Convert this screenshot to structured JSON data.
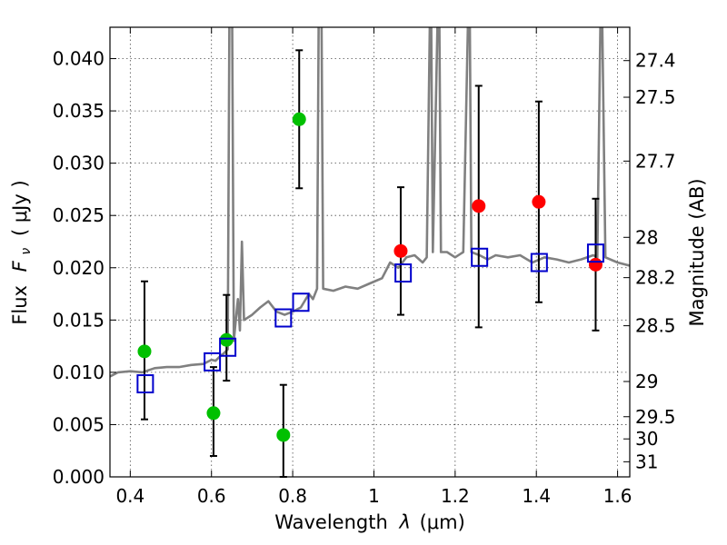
{
  "chart_data": {
    "type": "scatter",
    "xlabel_text": "Wavelength",
    "xlabel_symbol": "λ",
    "xlabel_unit": "(μm)",
    "ylabel_text": "Flux",
    "ylabel_symbol": "F",
    "ylabel_subscript": "ν",
    "ylabel_unit": "( μJy )",
    "y2label": "Magnitude (AB)",
    "xlim": [
      0.35,
      1.63
    ],
    "ylim": [
      0.0,
      0.043
    ],
    "grid": true,
    "x_ticks": [
      {
        "value": 0.4,
        "label": "0.4"
      },
      {
        "value": 0.6,
        "label": "0.6"
      },
      {
        "value": 0.8,
        "label": "0.8"
      },
      {
        "value": 1.0,
        "label": "1"
      },
      {
        "value": 1.2,
        "label": "1.2"
      },
      {
        "value": 1.4,
        "label": "1.4"
      },
      {
        "value": 1.6,
        "label": "1.6"
      }
    ],
    "y_ticks": [
      {
        "value": 0.0,
        "label": "0.000"
      },
      {
        "value": 0.005,
        "label": "0.005"
      },
      {
        "value": 0.01,
        "label": "0.010"
      },
      {
        "value": 0.015,
        "label": "0.015"
      },
      {
        "value": 0.02,
        "label": "0.020"
      },
      {
        "value": 0.025,
        "label": "0.025"
      },
      {
        "value": 0.03,
        "label": "0.030"
      },
      {
        "value": 0.035,
        "label": "0.035"
      },
      {
        "value": 0.04,
        "label": "0.040"
      }
    ],
    "y2_ticks": [
      {
        "label": "27.4",
        "mag": 27.4
      },
      {
        "label": "27.5",
        "mag": 27.5
      },
      {
        "label": "27.7",
        "mag": 27.7
      },
      {
        "label": "28",
        "mag": 28.0
      },
      {
        "label": "28.2",
        "mag": 28.2
      },
      {
        "label": "28.5",
        "mag": 28.5
      },
      {
        "label": "29",
        "mag": 29.0
      },
      {
        "label": "29.5",
        "mag": 29.5
      },
      {
        "label": "30",
        "mag": 30.0
      },
      {
        "label": "31",
        "mag": 31.0
      }
    ],
    "colors": {
      "template": "#808080",
      "green_points": "#00c000",
      "red_points": "#ff0000",
      "model_boxes": "#0000cc",
      "errorbars": "#000000"
    },
    "template_spectrum": {
      "name": "",
      "points": [
        [
          0.35,
          0.0096
        ],
        [
          0.37,
          0.01
        ],
        [
          0.4,
          0.0101
        ],
        [
          0.43,
          0.01
        ],
        [
          0.46,
          0.0104
        ],
        [
          0.49,
          0.0105
        ],
        [
          0.52,
          0.0105
        ],
        [
          0.55,
          0.0107
        ],
        [
          0.58,
          0.0108
        ],
        [
          0.6,
          0.0112
        ],
        [
          0.61,
          0.0111
        ],
        [
          0.62,
          0.0115
        ],
        [
          0.63,
          0.0118
        ],
        [
          0.64,
          0.0122
        ],
        [
          0.645,
          0.05
        ],
        [
          0.65,
          0.05
        ],
        [
          0.655,
          0.013
        ],
        [
          0.66,
          0.015
        ],
        [
          0.665,
          0.017
        ],
        [
          0.67,
          0.014
        ],
        [
          0.675,
          0.0225
        ],
        [
          0.68,
          0.015
        ],
        [
          0.7,
          0.0155
        ],
        [
          0.72,
          0.0162
        ],
        [
          0.74,
          0.0168
        ],
        [
          0.76,
          0.0158
        ],
        [
          0.78,
          0.0155
        ],
        [
          0.8,
          0.0158
        ],
        [
          0.82,
          0.0162
        ],
        [
          0.84,
          0.0175
        ],
        [
          0.85,
          0.017
        ],
        [
          0.86,
          0.018
        ],
        [
          0.865,
          0.05
        ],
        [
          0.87,
          0.05
        ],
        [
          0.875,
          0.018
        ],
        [
          0.9,
          0.0178
        ],
        [
          0.93,
          0.0182
        ],
        [
          0.96,
          0.018
        ],
        [
          0.99,
          0.0185
        ],
        [
          1.02,
          0.019
        ],
        [
          1.04,
          0.0205
        ],
        [
          1.06,
          0.02
        ],
        [
          1.08,
          0.021
        ],
        [
          1.1,
          0.0212
        ],
        [
          1.12,
          0.0205
        ],
        [
          1.13,
          0.021
        ],
        [
          1.14,
          0.05
        ],
        [
          1.145,
          0.0215
        ],
        [
          1.16,
          0.05
        ],
        [
          1.165,
          0.0215
        ],
        [
          1.18,
          0.0215
        ],
        [
          1.2,
          0.021
        ],
        [
          1.22,
          0.0215
        ],
        [
          1.235,
          0.05
        ],
        [
          1.24,
          0.0215
        ],
        [
          1.26,
          0.0212
        ],
        [
          1.28,
          0.0208
        ],
        [
          1.3,
          0.0212
        ],
        [
          1.33,
          0.021
        ],
        [
          1.36,
          0.0212
        ],
        [
          1.39,
          0.0205
        ],
        [
          1.42,
          0.021
        ],
        [
          1.45,
          0.0208
        ],
        [
          1.48,
          0.0205
        ],
        [
          1.51,
          0.0208
        ],
        [
          1.54,
          0.0212
        ],
        [
          1.55,
          0.021
        ],
        [
          1.56,
          0.05
        ],
        [
          1.57,
          0.021
        ],
        [
          1.6,
          0.0205
        ],
        [
          1.63,
          0.0202
        ]
      ]
    },
    "series": [
      {
        "name": "",
        "marker": "circle",
        "color_key": "green_points",
        "points": [
          {
            "x": 0.435,
            "y": 0.012,
            "yerr": [
              0.0055,
              0.0187
            ]
          },
          {
            "x": 0.605,
            "y": 0.0061,
            "yerr": [
              0.002,
              0.0105
            ]
          },
          {
            "x": 0.637,
            "y": 0.0131,
            "yerr": [
              0.0092,
              0.0174
            ]
          },
          {
            "x": 0.777,
            "y": 0.004,
            "yerr": [
              0.0,
              0.0088
            ]
          },
          {
            "x": 0.816,
            "y": 0.0342,
            "yerr": [
              0.0276,
              0.0408
            ]
          }
        ]
      },
      {
        "name": "",
        "marker": "circle",
        "color_key": "red_points",
        "points": [
          {
            "x": 1.066,
            "y": 0.0216,
            "yerr": [
              0.0155,
              0.0277
            ]
          },
          {
            "x": 1.258,
            "y": 0.0259,
            "yerr": [
              0.0143,
              0.0374
            ]
          },
          {
            "x": 1.406,
            "y": 0.0263,
            "yerr": [
              0.0167,
              0.0359
            ]
          },
          {
            "x": 1.546,
            "y": 0.0203,
            "yerr": [
              0.014,
              0.0266
            ]
          }
        ]
      },
      {
        "name": "",
        "marker": "square",
        "color_key": "model_boxes",
        "points": [
          {
            "x": 0.437,
            "y": 0.0089
          },
          {
            "x": 0.602,
            "y": 0.011
          },
          {
            "x": 0.64,
            "y": 0.0124
          },
          {
            "x": 0.777,
            "y": 0.0152
          },
          {
            "x": 0.82,
            "y": 0.0167
          },
          {
            "x": 1.072,
            "y": 0.0195
          },
          {
            "x": 1.26,
            "y": 0.021
          },
          {
            "x": 1.407,
            "y": 0.0205
          },
          {
            "x": 1.546,
            "y": 0.0214
          }
        ]
      }
    ]
  }
}
